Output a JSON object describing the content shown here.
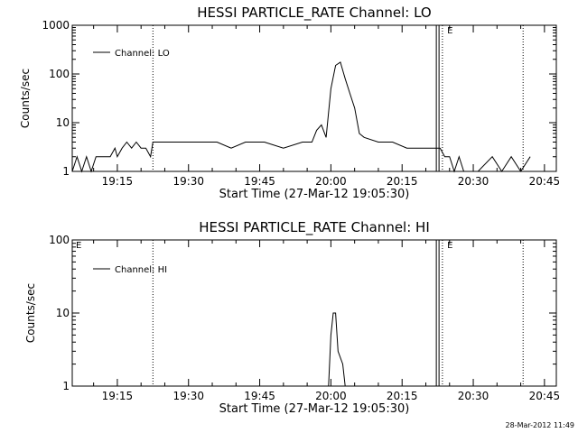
{
  "chart_data": [
    {
      "type": "line",
      "title": "HESSI PARTICLE_RATE Channel: LO",
      "xlabel": "Start Time (27-Mar-12 19:05:30)",
      "ylabel": "Counts/sec",
      "ylim": [
        1,
        1000
      ],
      "y_scale": "log",
      "xlim": [
        "19:05:30",
        "20:47:30"
      ],
      "x_ticks": [
        "19:15",
        "19:30",
        "19:45",
        "20:00",
        "20:15",
        "20:30",
        "20:45"
      ],
      "y_ticks": [
        "1",
        "10",
        "100",
        "1000"
      ],
      "legend": "top-left",
      "flags": [
        "E"
      ],
      "series": [
        {
          "name": "Channel: LO",
          "points": [
            [
              "19:05:30",
              1
            ],
            [
              "19:06:30",
              2
            ],
            [
              "19:07:30",
              1
            ],
            [
              "19:08:30",
              2
            ],
            [
              "19:09:30",
              1
            ],
            [
              "19:10:30",
              2
            ],
            [
              "19:11:30",
              2
            ],
            [
              "19:12:30",
              2
            ],
            [
              "19:13:30",
              2
            ],
            [
              "19:14:30",
              3
            ],
            [
              "19:15:00",
              2
            ],
            [
              "19:16:00",
              3
            ],
            [
              "19:17:00",
              4
            ],
            [
              "19:18:00",
              3
            ],
            [
              "19:19:00",
              4
            ],
            [
              "19:20:00",
              3
            ],
            [
              "19:21:00",
              3
            ],
            [
              "19:22:00",
              2
            ],
            [
              "19:22:30",
              4
            ],
            [
              "19:25:00",
              4
            ],
            [
              "19:28:00",
              4
            ],
            [
              "19:32:00",
              4
            ],
            [
              "19:36:00",
              4
            ],
            [
              "19:39:00",
              3
            ],
            [
              "19:42:00",
              4
            ],
            [
              "19:46:00",
              4
            ],
            [
              "19:50:00",
              3
            ],
            [
              "19:54:00",
              4
            ],
            [
              "19:56:00",
              4
            ],
            [
              "19:57:00",
              7
            ],
            [
              "19:58:00",
              9
            ],
            [
              "19:59:00",
              5
            ],
            [
              "20:00:00",
              50
            ],
            [
              "20:01:00",
              150
            ],
            [
              "20:02:00",
              175
            ],
            [
              "20:03:00",
              80
            ],
            [
              "20:04:00",
              40
            ],
            [
              "20:05:00",
              20
            ],
            [
              "20:06:00",
              6
            ],
            [
              "20:07:00",
              5
            ],
            [
              "20:10:00",
              4
            ],
            [
              "20:13:00",
              4
            ],
            [
              "20:16:00",
              3
            ],
            [
              "20:19:00",
              3
            ],
            [
              "20:21:30",
              3
            ],
            [
              "20:23:00",
              3
            ],
            [
              "20:24:00",
              2
            ],
            [
              "20:25:00",
              2
            ],
            [
              "20:26:00",
              1
            ],
            [
              "20:27:00",
              2
            ],
            [
              "20:28:00",
              1
            ],
            [
              "20:31:00",
              1
            ],
            [
              "20:34:00",
              2
            ],
            [
              "20:36:00",
              1
            ],
            [
              "20:38:00",
              2
            ],
            [
              "20:40:00",
              1
            ],
            [
              "20:42:00",
              2
            ]
          ]
        }
      ],
      "markers": [
        "19:22:30",
        "20:22:30",
        "20:23:30",
        "20:40:30"
      ]
    },
    {
      "type": "line",
      "title": "HESSI PARTICLE_RATE Channel: HI",
      "xlabel": "Start Time (27-Mar-12 19:05:30)",
      "ylabel": "Counts/sec",
      "ylim": [
        1,
        100
      ],
      "y_scale": "log",
      "xlim": [
        "19:05:30",
        "20:47:30"
      ],
      "x_ticks": [
        "19:15",
        "19:30",
        "19:45",
        "20:00",
        "20:15",
        "20:30",
        "20:45"
      ],
      "y_ticks": [
        "1",
        "10",
        "100"
      ],
      "legend": "top-left",
      "flags": [
        "E",
        "E"
      ],
      "series": [
        {
          "name": "Channel: HI",
          "points": [
            [
              "19:59:30",
              1
            ],
            [
              "20:00:00",
              5
            ],
            [
              "20:00:30",
              10
            ],
            [
              "20:01:00",
              10
            ],
            [
              "20:01:30",
              3
            ],
            [
              "20:02:30",
              2
            ],
            [
              "20:03:00",
              1
            ]
          ]
        }
      ],
      "markers": [
        "19:22:30",
        "20:22:30",
        "20:23:30",
        "20:40:30"
      ]
    }
  ],
  "footer": {
    "timestamp": "28-Mar-2012 11:49"
  }
}
